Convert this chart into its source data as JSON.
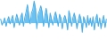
{
  "values": [
    0.3,
    -0.2,
    0.1,
    0.4,
    -0.3,
    0.2,
    0.5,
    -0.1,
    0.3,
    0.6,
    -0.4,
    0.2,
    0.7,
    0.3,
    -0.2,
    0.5,
    0.8,
    -0.3,
    0.4,
    0.9,
    1.5,
    0.6,
    -0.1,
    0.8,
    1.1,
    1.8,
    1.2,
    -0.5,
    0.7,
    1.0,
    1.4,
    0.9,
    -0.3,
    0.6,
    1.2,
    0.5,
    -0.4,
    0.8,
    0.3,
    -0.2,
    0.5,
    0.9,
    0.4,
    -0.3,
    0.7,
    0.4,
    -0.5,
    0.3,
    0.6,
    0.2,
    -0.6,
    1.0,
    0.5,
    -0.3,
    0.4,
    0.8,
    0.3,
    -0.5,
    0.2,
    0.7,
    0.3,
    -0.8,
    0.5,
    0.2,
    -0.4,
    0.6,
    -0.2,
    0.4,
    -0.3,
    0.5,
    -0.6,
    0.3,
    0.7,
    -0.3,
    0.4,
    -0.5,
    0.2,
    0.6,
    -0.4,
    0.3
  ],
  "line_color": "#4baee8",
  "fill_color": "#5bbcf0",
  "background_color": "#ffffff",
  "linewidth": 0.7,
  "alpha": 0.9
}
